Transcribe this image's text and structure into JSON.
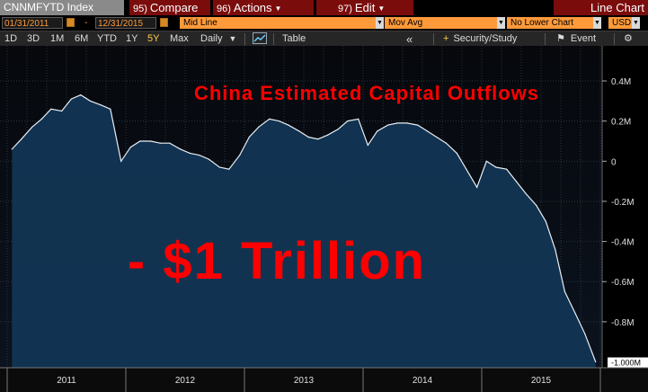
{
  "toolbar": {
    "ticker": "CNNMFYTD Index",
    "compare_num": "95)",
    "compare_label": "Compare",
    "actions_num": "96)",
    "actions_label": "Actions",
    "edit_num": "97)",
    "edit_label": "Edit",
    "view_label": "Line Chart"
  },
  "options": {
    "start_date": "01/31/2011",
    "date_sep": "-",
    "end_date": "12/31/2015",
    "price_type": "Mid Line",
    "mov_avg": "Mov Avg",
    "lower_chart": "No Lower Chart",
    "currency": "USD"
  },
  "periods": {
    "items": [
      "1D",
      "3D",
      "1M",
      "6M",
      "YTD",
      "1Y",
      "5Y",
      "Max"
    ],
    "selected": "5Y",
    "frequency": "Daily",
    "table_label": "Table",
    "collapse_label": "«",
    "security_study": "Security/Study",
    "event_label": "Event"
  },
  "annotations": {
    "headline": "China Estimated Capital Outflows",
    "callout": "- $1 Trillion"
  },
  "colors": {
    "accent_red": "#7b0c0c",
    "option_orange": "#ff9a3a",
    "area_fill": "#123656",
    "annotation_red": "#ff0000"
  },
  "chart_data": {
    "type": "area",
    "ylim": [
      -1.0,
      0.5
    ],
    "ytick_values": [
      0.4,
      0.2,
      0,
      -0.2,
      -0.4,
      -0.6,
      -0.8
    ],
    "ytick_labels": [
      "0.4M",
      "0.2M",
      "0",
      "-0.2M",
      "-0.4M",
      "-0.6M",
      "-0.8M"
    ],
    "last_value_label": "-1.000M",
    "year_labels": [
      "2011",
      "2012",
      "2013",
      "2014",
      "2015"
    ],
    "year_bounds": [
      2011.0,
      2012.0,
      2013.0,
      2014.0,
      2015.0,
      2016.0
    ],
    "xlim": [
      2011.0,
      2016.0
    ],
    "x": [
      2011.04,
      2011.12,
      2011.21,
      2011.29,
      2011.37,
      2011.46,
      2011.54,
      2011.62,
      2011.7,
      2011.79,
      2011.87,
      2011.96,
      2012.04,
      2012.12,
      2012.21,
      2012.29,
      2012.37,
      2012.46,
      2012.54,
      2012.62,
      2012.7,
      2012.79,
      2012.87,
      2012.96,
      2013.04,
      2013.12,
      2013.21,
      2013.29,
      2013.37,
      2013.46,
      2013.54,
      2013.62,
      2013.7,
      2013.79,
      2013.87,
      2013.96,
      2014.04,
      2014.12,
      2014.21,
      2014.29,
      2014.37,
      2014.46,
      2014.54,
      2014.62,
      2014.7,
      2014.79,
      2014.87,
      2014.96,
      2015.04,
      2015.12,
      2015.21,
      2015.29,
      2015.37,
      2015.46,
      2015.54,
      2015.62,
      2015.7,
      2015.79,
      2015.87,
      2015.96
    ],
    "values": [
      0.06,
      0.11,
      0.17,
      0.21,
      0.26,
      0.25,
      0.31,
      0.33,
      0.3,
      0.28,
      0.26,
      0.0,
      0.07,
      0.1,
      0.1,
      0.09,
      0.09,
      0.06,
      0.04,
      0.03,
      0.01,
      -0.03,
      -0.04,
      0.03,
      0.12,
      0.17,
      0.21,
      0.2,
      0.18,
      0.15,
      0.12,
      0.11,
      0.13,
      0.16,
      0.2,
      0.21,
      0.08,
      0.15,
      0.18,
      0.19,
      0.19,
      0.18,
      0.15,
      0.12,
      0.09,
      0.04,
      -0.04,
      -0.13,
      0.0,
      -0.03,
      -0.04,
      -0.1,
      -0.16,
      -0.22,
      -0.3,
      -0.44,
      -0.65,
      -0.76,
      -0.86,
      -1.0
    ]
  }
}
